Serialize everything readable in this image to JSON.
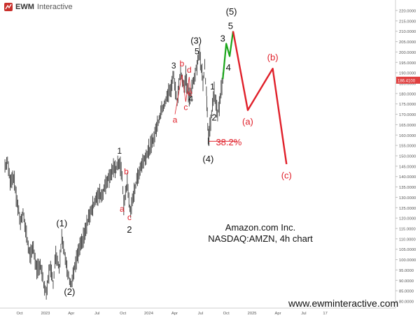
{
  "logo": {
    "brand": "EWM",
    "rest": "Interactive"
  },
  "caption": {
    "line1": "Amazon.com Inc.",
    "line2": "NASDAQ:AMZN, 4h chart"
  },
  "footer": {
    "url": "www.ewminteractive.com"
  },
  "price_label": "186.4100",
  "colors": {
    "price": "#3b3b3b",
    "impulse": "#1aa51a",
    "projection": "#e0202a",
    "retrace": "#e0202a",
    "label_black": "#111111",
    "current_price_bg": "#e04040"
  },
  "chart_data": {
    "type": "line",
    "title": "Amazon.com Inc.",
    "subtitle": "NASDAQ:AMZN, 4h chart",
    "xlabel": "",
    "ylabel": "",
    "ylim": [
      78,
      225
    ],
    "y_ticks": [
      "220.0000",
      "215.0000",
      "210.0000",
      "205.0000",
      "200.0000",
      "195.0000",
      "190.0000",
      "185.0000",
      "180.0000",
      "175.0000",
      "170.0000",
      "165.0000",
      "160.0000",
      "155.0000",
      "150.0000",
      "145.0000",
      "140.0000",
      "135.0000",
      "130.0000",
      "125.0000",
      "120.0000",
      "115.0000",
      "110.0000",
      "105.0000",
      "100.0000",
      "95.0000",
      "90.0000",
      "85.0000",
      "80.0000"
    ],
    "x_ticks": [
      {
        "label": "Oct",
        "t": 0.0
      },
      {
        "label": "2023",
        "t": 3.0
      },
      {
        "label": "Apr",
        "t": 6.0
      },
      {
        "label": "Jul",
        "t": 9.0
      },
      {
        "label": "Oct",
        "t": 12.0
      },
      {
        "label": "2024",
        "t": 15.0
      },
      {
        "label": "Apr",
        "t": 18.0
      },
      {
        "label": "Jul",
        "t": 21.0
      },
      {
        "label": "Oct",
        "t": 24.0
      },
      {
        "label": "2025",
        "t": 27.0
      },
      {
        "label": "Apr",
        "t": 30.0
      },
      {
        "label": "Jul",
        "t": 33.0
      },
      {
        "label": "17",
        "t": 35.5
      }
    ],
    "price_path": [
      [
        -1.7,
        145
      ],
      [
        -1.4,
        147
      ],
      [
        -1.1,
        138
      ],
      [
        -0.7,
        140
      ],
      [
        -0.3,
        128
      ],
      [
        0.1,
        118
      ],
      [
        0.4,
        122
      ],
      [
        0.8,
        112
      ],
      [
        1.2,
        102
      ],
      [
        1.6,
        106
      ],
      [
        2.0,
        94
      ],
      [
        2.4,
        98
      ],
      [
        2.8,
        88
      ],
      [
        3.1,
        83
      ],
      [
        3.5,
        97
      ],
      [
        3.9,
        89
      ],
      [
        4.2,
        103
      ],
      [
        4.6,
        96
      ],
      [
        4.9,
        112
      ],
      [
        5.3,
        100
      ],
      [
        5.6,
        93
      ],
      [
        6.0,
        88
      ],
      [
        6.4,
        96
      ],
      [
        6.8,
        103
      ],
      [
        7.2,
        108
      ],
      [
        7.6,
        113
      ],
      [
        8.0,
        120
      ],
      [
        8.4,
        125
      ],
      [
        8.8,
        128
      ],
      [
        9.2,
        132
      ],
      [
        9.6,
        131
      ],
      [
        10.0,
        137
      ],
      [
        10.4,
        140
      ],
      [
        10.8,
        143
      ],
      [
        11.2,
        144
      ],
      [
        11.6,
        147
      ],
      [
        11.9,
        140
      ],
      [
        12.1,
        126
      ],
      [
        12.3,
        132
      ],
      [
        12.5,
        137
      ],
      [
        12.7,
        129
      ],
      [
        12.9,
        122
      ],
      [
        13.2,
        131
      ],
      [
        13.6,
        138
      ],
      [
        14.0,
        144
      ],
      [
        14.4,
        148
      ],
      [
        14.8,
        151
      ],
      [
        15.2,
        154
      ],
      [
        15.6,
        159
      ],
      [
        16.0,
        165
      ],
      [
        16.4,
        171
      ],
      [
        16.8,
        175
      ],
      [
        17.2,
        179
      ],
      [
        17.6,
        183
      ],
      [
        17.9,
        189
      ],
      [
        18.1,
        181
      ],
      [
        18.3,
        176
      ],
      [
        18.5,
        185
      ],
      [
        18.7,
        191
      ],
      [
        18.9,
        186
      ],
      [
        19.1,
        183
      ],
      [
        19.3,
        188
      ],
      [
        19.6,
        180
      ],
      [
        19.8,
        177
      ],
      [
        20.0,
        183
      ],
      [
        20.3,
        188
      ],
      [
        20.6,
        193
      ],
      [
        20.9,
        200
      ],
      [
        21.1,
        193
      ],
      [
        21.3,
        186
      ],
      [
        21.5,
        193
      ],
      [
        21.7,
        181
      ],
      [
        21.8,
        171
      ],
      [
        21.9,
        157
      ],
      [
        22.0,
        160
      ],
      [
        22.2,
        167
      ],
      [
        22.4,
        174
      ],
      [
        22.6,
        180
      ],
      [
        22.8,
        176
      ],
      [
        23.0,
        170
      ],
      [
        23.2,
        175
      ],
      [
        23.4,
        181
      ],
      [
        23.6,
        187
      ]
    ],
    "series": [
      {
        "name": "",
        "type": "impulse",
        "points": [
          [
            23.6,
            187
          ],
          [
            24.0,
            204
          ],
          [
            24.4,
            198
          ],
          [
            24.8,
            210
          ]
        ]
      },
      {
        "name": "",
        "type": "projection",
        "points": [
          [
            24.8,
            210
          ],
          [
            26.5,
            172
          ],
          [
            29.4,
            192
          ],
          [
            31.0,
            146
          ]
        ]
      },
      {
        "name": "",
        "type": "retracement",
        "points": [
          [
            22.0,
            157
          ],
          [
            25.3,
            157
          ]
        ]
      }
    ],
    "annotations": [
      {
        "text": "(1)",
        "x": 4.9,
        "y": 116,
        "color": "black",
        "size": 13
      },
      {
        "text": "(2)",
        "x": 5.8,
        "y": 83,
        "color": "black",
        "size": 13
      },
      {
        "text": "1",
        "x": 11.6,
        "y": 151,
        "color": "black",
        "size": 12
      },
      {
        "text": "a",
        "x": 11.9,
        "y": 123,
        "color": "red",
        "size": 12
      },
      {
        "text": "b",
        "x": 12.4,
        "y": 141,
        "color": "red",
        "size": 12
      },
      {
        "text": "c",
        "x": 12.75,
        "y": 119,
        "color": "red",
        "size": 12
      },
      {
        "text": "2",
        "x": 12.75,
        "y": 113,
        "color": "black",
        "size": 13
      },
      {
        "text": "3",
        "x": 17.9,
        "y": 192,
        "color": "black",
        "size": 12
      },
      {
        "text": "a",
        "x": 18.05,
        "y": 166,
        "color": "red",
        "size": 12
      },
      {
        "text": "b",
        "x": 18.85,
        "y": 193,
        "color": "red",
        "size": 12
      },
      {
        "text": "c",
        "x": 19.3,
        "y": 172,
        "color": "red",
        "size": 12
      },
      {
        "text": "d",
        "x": 19.7,
        "y": 190,
        "color": "red",
        "size": 12
      },
      {
        "text": "e",
        "x": 19.8,
        "y": 179,
        "color": "red",
        "size": 12
      },
      {
        "text": "4",
        "x": 19.9,
        "y": 176,
        "color": "black",
        "size": 12
      },
      {
        "text": "5",
        "x": 20.6,
        "y": 199,
        "color": "black",
        "size": 12
      },
      {
        "text": "(3)",
        "x": 20.5,
        "y": 204,
        "color": "black",
        "size": 13
      },
      {
        "text": "1",
        "x": 22.4,
        "y": 182,
        "color": "black",
        "size": 12
      },
      {
        "text": "2",
        "x": 22.6,
        "y": 167,
        "color": "black",
        "size": 13
      },
      {
        "text": "(4)",
        "x": 21.9,
        "y": 147,
        "color": "black",
        "size": 13
      },
      {
        "text": "3",
        "x": 23.6,
        "y": 205,
        "color": "black",
        "size": 13
      },
      {
        "text": "4",
        "x": 24.25,
        "y": 191,
        "color": "black",
        "size": 13
      },
      {
        "text": "5",
        "x": 24.5,
        "y": 211,
        "color": "black",
        "size": 13
      },
      {
        "text": "(5)",
        "x": 24.6,
        "y": 218,
        "color": "black",
        "size": 13
      },
      {
        "text": "(a)",
        "x": 26.5,
        "y": 165,
        "color": "red",
        "size": 13
      },
      {
        "text": "(b)",
        "x": 29.4,
        "y": 196,
        "color": "red",
        "size": 13
      },
      {
        "text": "(c)",
        "x": 31.0,
        "y": 139,
        "color": "red",
        "size": 13
      },
      {
        "text": "38.2%",
        "x": 24.3,
        "y": 155,
        "color": "red",
        "size": 13
      }
    ],
    "grid": false,
    "legend": "none"
  }
}
